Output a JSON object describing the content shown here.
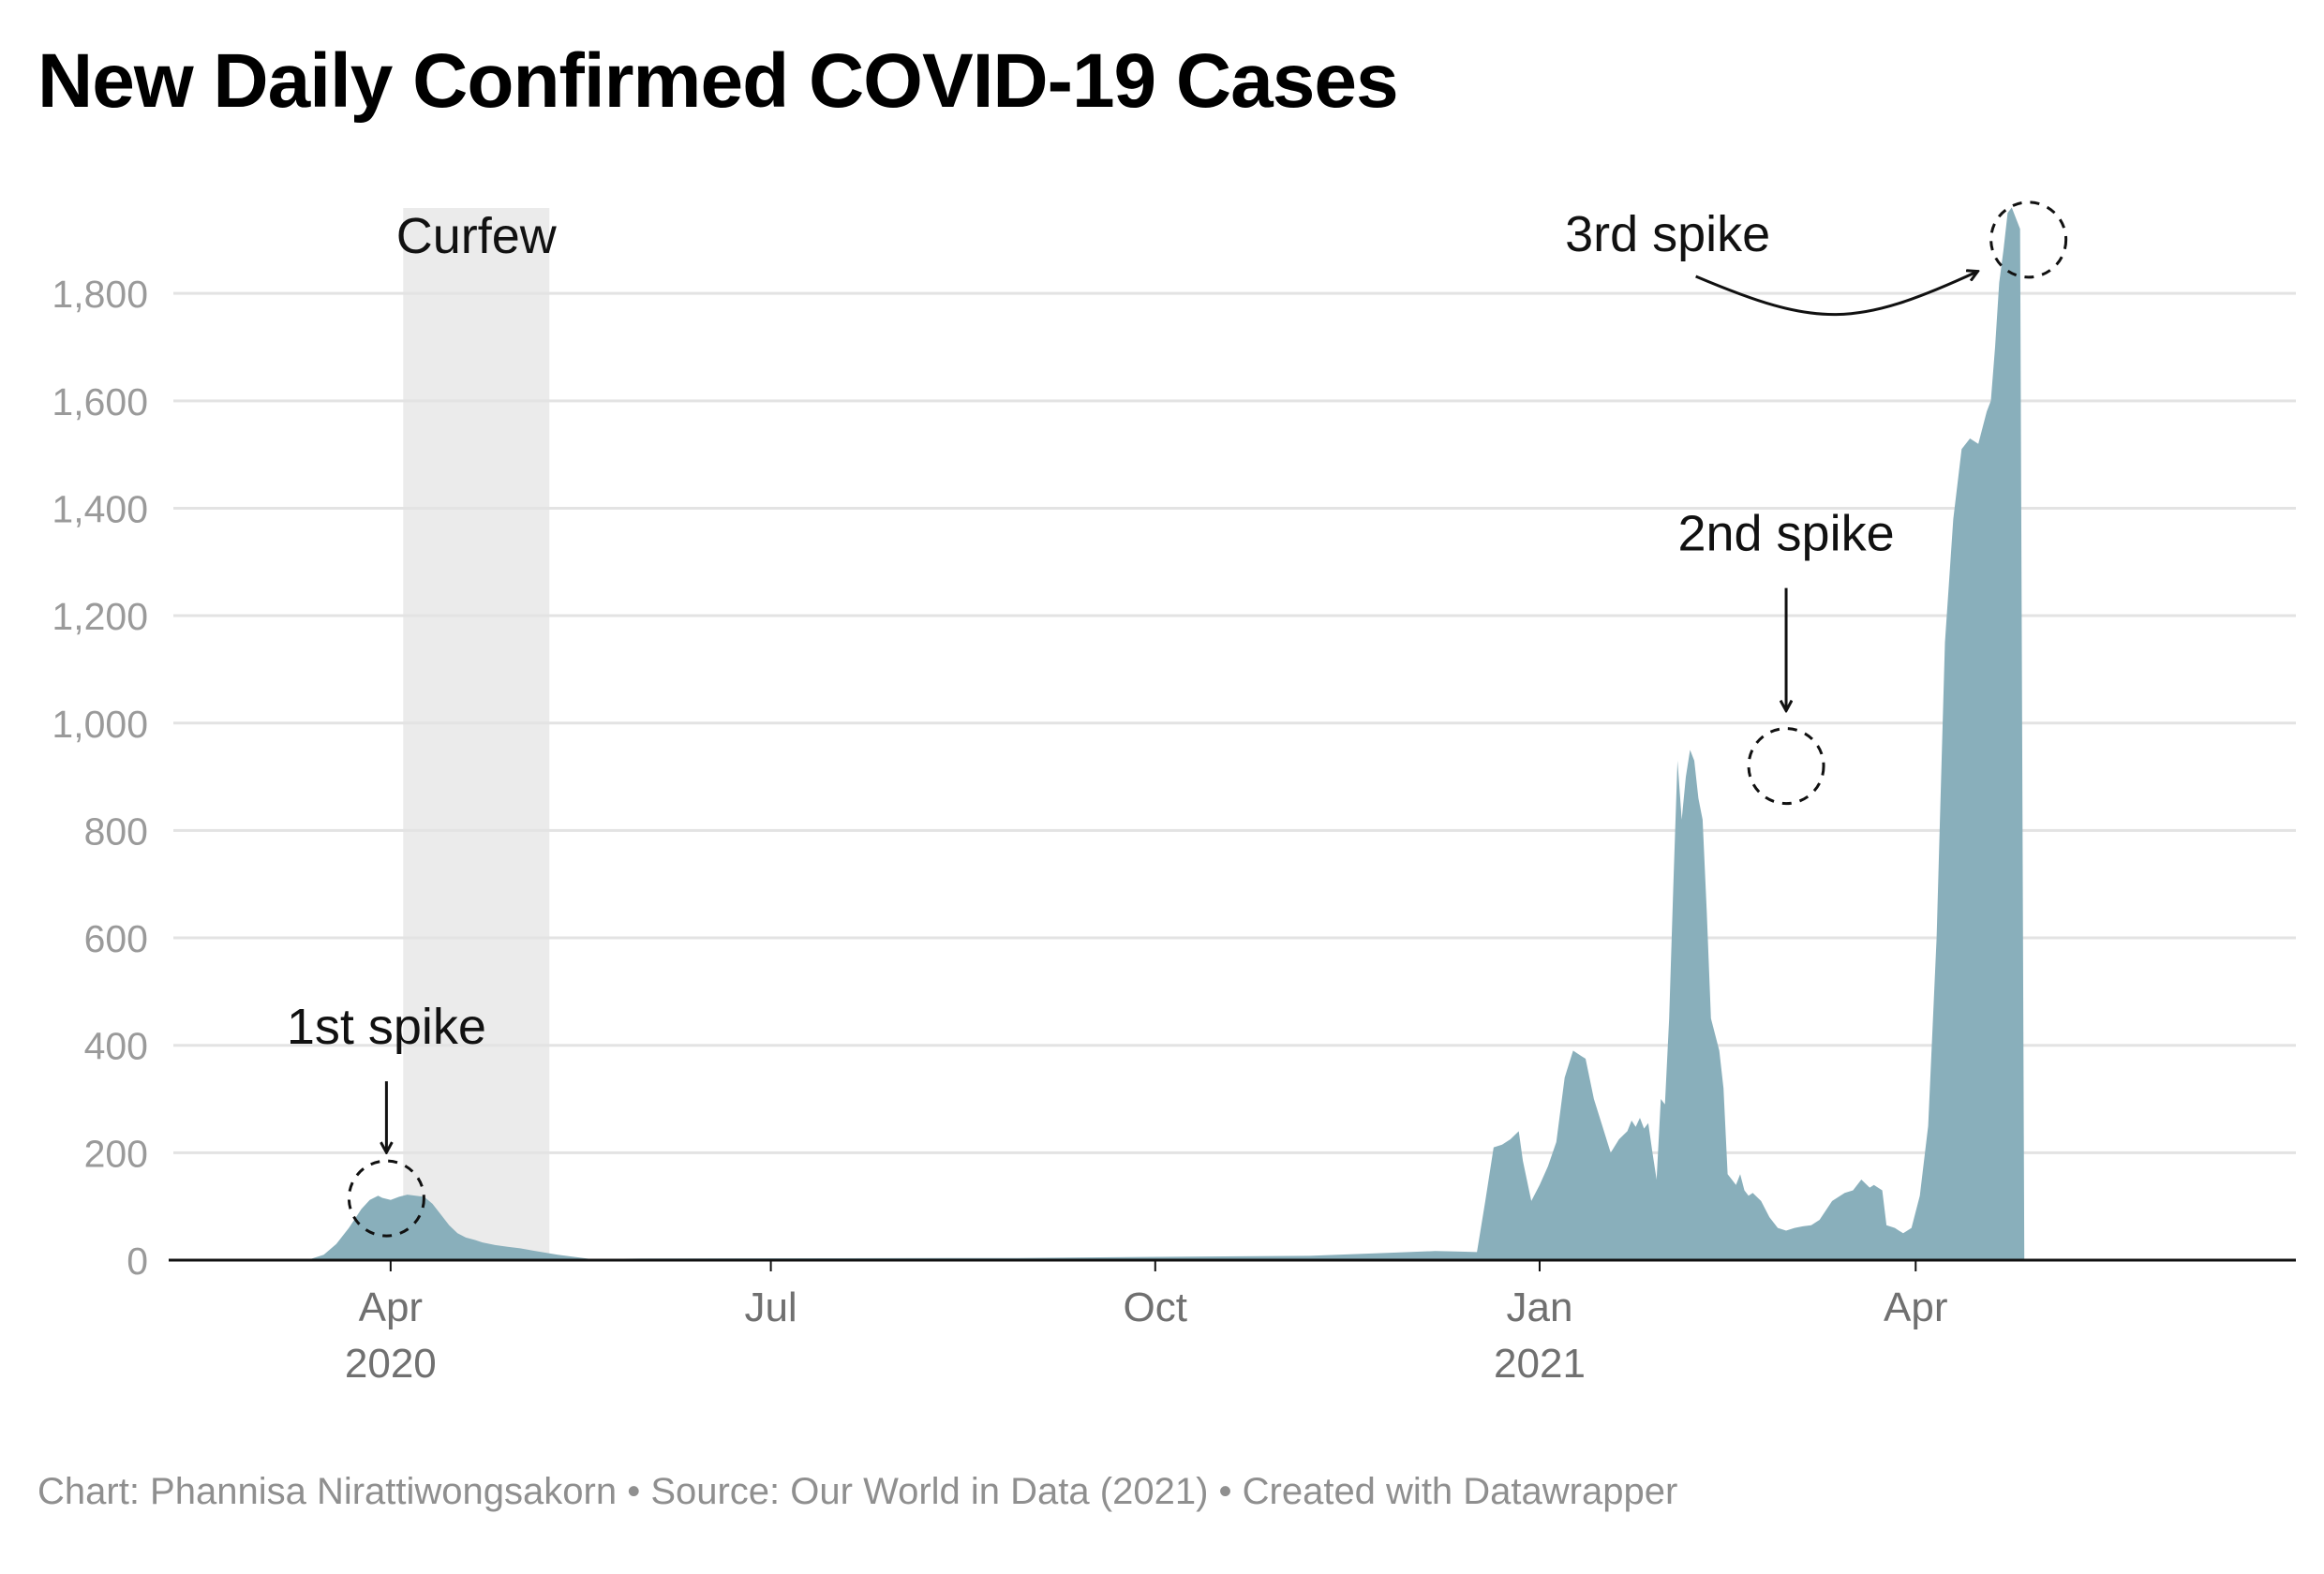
{
  "chart_data": {
    "type": "area",
    "title": "New Daily Confirmed COVID-19 Cases",
    "xlabel": "",
    "ylabel": "",
    "ylim": [
      0,
      1980
    ],
    "yticks": [
      0,
      200,
      400,
      600,
      800,
      1000,
      1200,
      1400,
      1600,
      1800
    ],
    "ytick_labels": [
      "0",
      "200",
      "400",
      "600",
      "800",
      "1,000",
      "1,200",
      "1,400",
      "1,600",
      "1,800"
    ],
    "x_range": [
      -52,
      456
    ],
    "x_unit": "days since 2020-04-01",
    "xticks": [
      {
        "day": 0,
        "label": "Apr",
        "year": "2020"
      },
      {
        "day": 91,
        "label": "Jul",
        "year": ""
      },
      {
        "day": 183,
        "label": "Oct",
        "year": ""
      },
      {
        "day": 275,
        "label": "Jan",
        "year": "2021"
      },
      {
        "day": 365,
        "label": "Apr",
        "year": ""
      }
    ],
    "grid": true,
    "series": [
      {
        "name": "New daily confirmed cases",
        "color": "#89afbb",
        "x": [
          -52,
          -20,
          -16,
          -13,
          -10,
          -7,
          -5,
          -3,
          -2,
          0,
          2,
          4,
          6,
          8,
          10,
          12,
          14,
          16,
          18,
          20,
          22,
          25,
          28,
          31,
          34,
          37,
          40,
          45,
          48,
          60,
          150,
          180,
          220,
          240,
          250,
          255,
          260,
          262,
          264,
          266,
          268,
          270,
          271,
          273,
          275,
          277,
          279,
          281,
          283,
          285,
          286,
          288,
          290,
          292,
          294,
          296,
          297,
          298,
          299,
          300,
          301,
          302,
          303,
          304,
          305,
          306,
          307,
          308,
          309,
          310,
          311,
          312,
          313,
          314,
          315,
          316,
          318,
          319,
          320,
          321,
          322,
          323,
          324,
          325,
          326,
          328,
          330,
          332,
          334,
          336,
          338,
          340,
          342,
          345,
          348,
          350,
          352,
          354,
          355,
          356,
          357,
          358,
          360,
          361,
          362,
          364,
          366,
          368,
          370,
          372,
          374,
          376,
          378,
          380,
          382,
          383,
          384,
          385,
          386,
          387,
          388,
          390,
          391,
          392,
          393,
          394
        ],
        "values": [
          0,
          0,
          10,
          30,
          60,
          95,
          112,
          120,
          116,
          112,
          118,
          122,
          120,
          118,
          105,
          85,
          65,
          50,
          42,
          38,
          33,
          28,
          25,
          22,
          18,
          14,
          10,
          5,
          2,
          3,
          4,
          6,
          8,
          14,
          17,
          16,
          15,
          110,
          210,
          215,
          225,
          240,
          185,
          110,
          140,
          175,
          220,
          340,
          390,
          380,
          375,
          300,
          250,
          200,
          225,
          240,
          260,
          248,
          265,
          245,
          255,
          200,
          150,
          300,
          290,
          450,
          700,
          930,
          820,
          900,
          950,
          930,
          860,
          820,
          650,
          450,
          390,
          320,
          160,
          150,
          140,
          160,
          130,
          120,
          125,
          110,
          80,
          60,
          55,
          60,
          63,
          65,
          75,
          110,
          125,
          130,
          150,
          135,
          140,
          135,
          130,
          65,
          60,
          55,
          50,
          60,
          120,
          250,
          600,
          1150,
          1380,
          1510,
          1530,
          1520,
          1580,
          1600,
          1700,
          1820,
          1880,
          1950,
          1960,
          1920,
          0,
          0,
          0,
          0
        ]
      }
    ],
    "shaded_ranges": [
      {
        "label": "Curfew",
        "start_day": 3,
        "end_day": 38
      }
    ],
    "annotations": [
      {
        "label": "1st spike",
        "day": -1,
        "value": 115
      },
      {
        "label": "2nd spike",
        "day": 334,
        "value": 920
      },
      {
        "label": "3rd spike",
        "day": 392,
        "value": 1900
      }
    ]
  },
  "footer": "Chart: Phannisa Nirattiwongsakorn • Source: Our World in Data (2021) • Created with Datawrapper",
  "colors": {
    "area": "#89afbb",
    "grid": "#e3e3e3",
    "shade": "#ebebeb",
    "axis": "#111111"
  }
}
